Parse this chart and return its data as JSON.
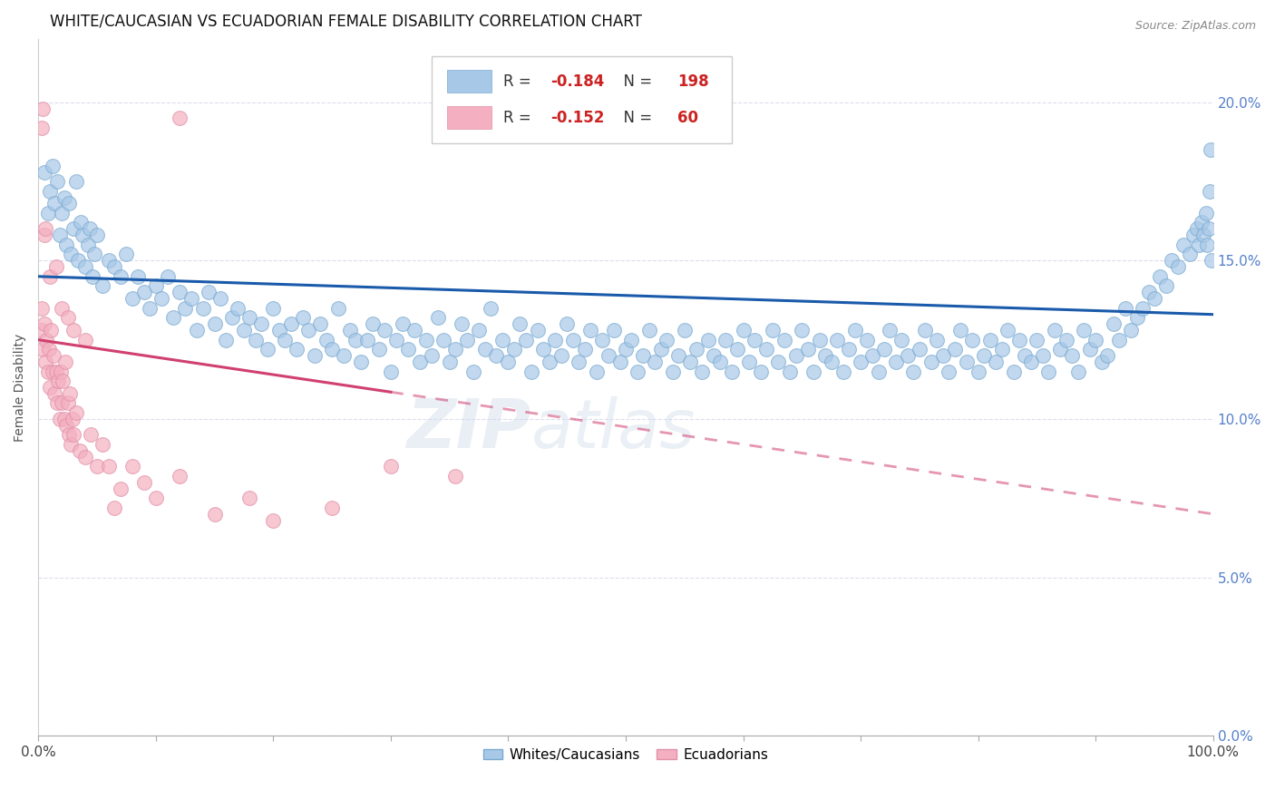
{
  "title": "WHITE/CAUCASIAN VS ECUADORIAN FEMALE DISABILITY CORRELATION CHART",
  "source": "Source: ZipAtlas.com",
  "ylabel": "Female Disability",
  "watermark": "ZIPatlas",
  "blue_R": -0.184,
  "blue_N": 198,
  "pink_R": -0.152,
  "pink_N": 60,
  "blue_color": "#a8c8e8",
  "pink_color": "#f4b0c0",
  "blue_line_color": "#1a5aaa",
  "pink_line_color": "#d04070",
  "blue_trend_y_start": 14.5,
  "blue_trend_y_end": 13.3,
  "pink_trend_y_start": 12.5,
  "pink_trend_y_end": 7.0,
  "pink_dashed_start_x": 30,
  "ylim": [
    0,
    22
  ],
  "xlim": [
    0,
    100
  ],
  "ytick_values": [
    0,
    5,
    10,
    15,
    20
  ],
  "xtick_values": [
    0,
    10,
    20,
    30,
    40,
    50,
    60,
    70,
    80,
    90,
    100
  ],
  "legend_blue_label": "Whites/Caucasians",
  "legend_pink_label": "Ecuadorians",
  "title_fontsize": 12,
  "axis_label_fontsize": 10,
  "tick_fontsize": 11,
  "right_tick_color": "#5580cc",
  "legend_R_color": "#cc2222",
  "legend_N_color": "#cc2222",
  "grid_color": "#ddddee",
  "blue_scatter": [
    [
      0.5,
      17.8
    ],
    [
      0.8,
      16.5
    ],
    [
      1.0,
      17.2
    ],
    [
      1.2,
      18.0
    ],
    [
      1.4,
      16.8
    ],
    [
      1.6,
      17.5
    ],
    [
      1.8,
      15.8
    ],
    [
      2.0,
      16.5
    ],
    [
      2.2,
      17.0
    ],
    [
      2.4,
      15.5
    ],
    [
      2.6,
      16.8
    ],
    [
      2.8,
      15.2
    ],
    [
      3.0,
      16.0
    ],
    [
      3.2,
      17.5
    ],
    [
      3.4,
      15.0
    ],
    [
      3.6,
      16.2
    ],
    [
      3.8,
      15.8
    ],
    [
      4.0,
      14.8
    ],
    [
      4.2,
      15.5
    ],
    [
      4.4,
      16.0
    ],
    [
      4.6,
      14.5
    ],
    [
      4.8,
      15.2
    ],
    [
      5.0,
      15.8
    ],
    [
      5.5,
      14.2
    ],
    [
      6.0,
      15.0
    ],
    [
      6.5,
      14.8
    ],
    [
      7.0,
      14.5
    ],
    [
      7.5,
      15.2
    ],
    [
      8.0,
      13.8
    ],
    [
      8.5,
      14.5
    ],
    [
      9.0,
      14.0
    ],
    [
      9.5,
      13.5
    ],
    [
      10.0,
      14.2
    ],
    [
      10.5,
      13.8
    ],
    [
      11.0,
      14.5
    ],
    [
      11.5,
      13.2
    ],
    [
      12.0,
      14.0
    ],
    [
      12.5,
      13.5
    ],
    [
      13.0,
      13.8
    ],
    [
      13.5,
      12.8
    ],
    [
      14.0,
      13.5
    ],
    [
      14.5,
      14.0
    ],
    [
      15.0,
      13.0
    ],
    [
      15.5,
      13.8
    ],
    [
      16.0,
      12.5
    ],
    [
      16.5,
      13.2
    ],
    [
      17.0,
      13.5
    ],
    [
      17.5,
      12.8
    ],
    [
      18.0,
      13.2
    ],
    [
      18.5,
      12.5
    ],
    [
      19.0,
      13.0
    ],
    [
      19.5,
      12.2
    ],
    [
      20.0,
      13.5
    ],
    [
      20.5,
      12.8
    ],
    [
      21.0,
      12.5
    ],
    [
      21.5,
      13.0
    ],
    [
      22.0,
      12.2
    ],
    [
      22.5,
      13.2
    ],
    [
      23.0,
      12.8
    ],
    [
      23.5,
      12.0
    ],
    [
      24.0,
      13.0
    ],
    [
      24.5,
      12.5
    ],
    [
      25.0,
      12.2
    ],
    [
      25.5,
      13.5
    ],
    [
      26.0,
      12.0
    ],
    [
      26.5,
      12.8
    ],
    [
      27.0,
      12.5
    ],
    [
      27.5,
      11.8
    ],
    [
      28.0,
      12.5
    ],
    [
      28.5,
      13.0
    ],
    [
      29.0,
      12.2
    ],
    [
      29.5,
      12.8
    ],
    [
      30.0,
      11.5
    ],
    [
      30.5,
      12.5
    ],
    [
      31.0,
      13.0
    ],
    [
      31.5,
      12.2
    ],
    [
      32.0,
      12.8
    ],
    [
      32.5,
      11.8
    ],
    [
      33.0,
      12.5
    ],
    [
      33.5,
      12.0
    ],
    [
      34.0,
      13.2
    ],
    [
      34.5,
      12.5
    ],
    [
      35.0,
      11.8
    ],
    [
      35.5,
      12.2
    ],
    [
      36.0,
      13.0
    ],
    [
      36.5,
      12.5
    ],
    [
      37.0,
      11.5
    ],
    [
      37.5,
      12.8
    ],
    [
      38.0,
      12.2
    ],
    [
      38.5,
      13.5
    ],
    [
      39.0,
      12.0
    ],
    [
      39.5,
      12.5
    ],
    [
      40.0,
      11.8
    ],
    [
      40.5,
      12.2
    ],
    [
      41.0,
      13.0
    ],
    [
      41.5,
      12.5
    ],
    [
      42.0,
      11.5
    ],
    [
      42.5,
      12.8
    ],
    [
      43.0,
      12.2
    ],
    [
      43.5,
      11.8
    ],
    [
      44.0,
      12.5
    ],
    [
      44.5,
      12.0
    ],
    [
      45.0,
      13.0
    ],
    [
      45.5,
      12.5
    ],
    [
      46.0,
      11.8
    ],
    [
      46.5,
      12.2
    ],
    [
      47.0,
      12.8
    ],
    [
      47.5,
      11.5
    ],
    [
      48.0,
      12.5
    ],
    [
      48.5,
      12.0
    ],
    [
      49.0,
      12.8
    ],
    [
      49.5,
      11.8
    ],
    [
      50.0,
      12.2
    ],
    [
      50.5,
      12.5
    ],
    [
      51.0,
      11.5
    ],
    [
      51.5,
      12.0
    ],
    [
      52.0,
      12.8
    ],
    [
      52.5,
      11.8
    ],
    [
      53.0,
      12.2
    ],
    [
      53.5,
      12.5
    ],
    [
      54.0,
      11.5
    ],
    [
      54.5,
      12.0
    ],
    [
      55.0,
      12.8
    ],
    [
      55.5,
      11.8
    ],
    [
      56.0,
      12.2
    ],
    [
      56.5,
      11.5
    ],
    [
      57.0,
      12.5
    ],
    [
      57.5,
      12.0
    ],
    [
      58.0,
      11.8
    ],
    [
      58.5,
      12.5
    ],
    [
      59.0,
      11.5
    ],
    [
      59.5,
      12.2
    ],
    [
      60.0,
      12.8
    ],
    [
      60.5,
      11.8
    ],
    [
      61.0,
      12.5
    ],
    [
      61.5,
      11.5
    ],
    [
      62.0,
      12.2
    ],
    [
      62.5,
      12.8
    ],
    [
      63.0,
      11.8
    ],
    [
      63.5,
      12.5
    ],
    [
      64.0,
      11.5
    ],
    [
      64.5,
      12.0
    ],
    [
      65.0,
      12.8
    ],
    [
      65.5,
      12.2
    ],
    [
      66.0,
      11.5
    ],
    [
      66.5,
      12.5
    ],
    [
      67.0,
      12.0
    ],
    [
      67.5,
      11.8
    ],
    [
      68.0,
      12.5
    ],
    [
      68.5,
      11.5
    ],
    [
      69.0,
      12.2
    ],
    [
      69.5,
      12.8
    ],
    [
      70.0,
      11.8
    ],
    [
      70.5,
      12.5
    ],
    [
      71.0,
      12.0
    ],
    [
      71.5,
      11.5
    ],
    [
      72.0,
      12.2
    ],
    [
      72.5,
      12.8
    ],
    [
      73.0,
      11.8
    ],
    [
      73.5,
      12.5
    ],
    [
      74.0,
      12.0
    ],
    [
      74.5,
      11.5
    ],
    [
      75.0,
      12.2
    ],
    [
      75.5,
      12.8
    ],
    [
      76.0,
      11.8
    ],
    [
      76.5,
      12.5
    ],
    [
      77.0,
      12.0
    ],
    [
      77.5,
      11.5
    ],
    [
      78.0,
      12.2
    ],
    [
      78.5,
      12.8
    ],
    [
      79.0,
      11.8
    ],
    [
      79.5,
      12.5
    ],
    [
      80.0,
      11.5
    ],
    [
      80.5,
      12.0
    ],
    [
      81.0,
      12.5
    ],
    [
      81.5,
      11.8
    ],
    [
      82.0,
      12.2
    ],
    [
      82.5,
      12.8
    ],
    [
      83.0,
      11.5
    ],
    [
      83.5,
      12.5
    ],
    [
      84.0,
      12.0
    ],
    [
      84.5,
      11.8
    ],
    [
      85.0,
      12.5
    ],
    [
      85.5,
      12.0
    ],
    [
      86.0,
      11.5
    ],
    [
      86.5,
      12.8
    ],
    [
      87.0,
      12.2
    ],
    [
      87.5,
      12.5
    ],
    [
      88.0,
      12.0
    ],
    [
      88.5,
      11.5
    ],
    [
      89.0,
      12.8
    ],
    [
      89.5,
      12.2
    ],
    [
      90.0,
      12.5
    ],
    [
      90.5,
      11.8
    ],
    [
      91.0,
      12.0
    ],
    [
      91.5,
      13.0
    ],
    [
      92.0,
      12.5
    ],
    [
      92.5,
      13.5
    ],
    [
      93.0,
      12.8
    ],
    [
      93.5,
      13.2
    ],
    [
      94.0,
      13.5
    ],
    [
      94.5,
      14.0
    ],
    [
      95.0,
      13.8
    ],
    [
      95.5,
      14.5
    ],
    [
      96.0,
      14.2
    ],
    [
      96.5,
      15.0
    ],
    [
      97.0,
      14.8
    ],
    [
      97.5,
      15.5
    ],
    [
      98.0,
      15.2
    ],
    [
      98.3,
      15.8
    ],
    [
      98.6,
      16.0
    ],
    [
      98.8,
      15.5
    ],
    [
      99.0,
      16.2
    ],
    [
      99.2,
      15.8
    ],
    [
      99.4,
      16.5
    ],
    [
      99.5,
      15.5
    ],
    [
      99.6,
      16.0
    ],
    [
      99.7,
      17.2
    ],
    [
      99.8,
      18.5
    ],
    [
      99.9,
      15.0
    ]
  ],
  "pink_scatter": [
    [
      0.2,
      12.8
    ],
    [
      0.3,
      13.5
    ],
    [
      0.4,
      12.2
    ],
    [
      0.5,
      13.0
    ],
    [
      0.6,
      11.8
    ],
    [
      0.7,
      12.5
    ],
    [
      0.8,
      11.5
    ],
    [
      0.9,
      12.2
    ],
    [
      1.0,
      11.0
    ],
    [
      1.1,
      12.8
    ],
    [
      1.2,
      11.5
    ],
    [
      1.3,
      12.0
    ],
    [
      1.4,
      10.8
    ],
    [
      1.5,
      11.5
    ],
    [
      1.6,
      10.5
    ],
    [
      1.7,
      11.2
    ],
    [
      1.8,
      10.0
    ],
    [
      1.9,
      11.5
    ],
    [
      2.0,
      10.5
    ],
    [
      2.1,
      11.2
    ],
    [
      2.2,
      10.0
    ],
    [
      2.3,
      11.8
    ],
    [
      2.4,
      9.8
    ],
    [
      2.5,
      10.5
    ],
    [
      2.6,
      9.5
    ],
    [
      2.7,
      10.8
    ],
    [
      2.8,
      9.2
    ],
    [
      2.9,
      10.0
    ],
    [
      3.0,
      9.5
    ],
    [
      3.2,
      10.2
    ],
    [
      3.5,
      9.0
    ],
    [
      4.0,
      8.8
    ],
    [
      4.5,
      9.5
    ],
    [
      5.0,
      8.5
    ],
    [
      5.5,
      9.2
    ],
    [
      6.0,
      8.5
    ],
    [
      7.0,
      7.8
    ],
    [
      8.0,
      8.5
    ],
    [
      10.0,
      7.5
    ],
    [
      12.0,
      8.2
    ],
    [
      15.0,
      7.0
    ],
    [
      18.0,
      7.5
    ],
    [
      20.0,
      6.8
    ],
    [
      25.0,
      7.2
    ],
    [
      30.0,
      8.5
    ],
    [
      0.3,
      19.2
    ],
    [
      0.4,
      19.8
    ],
    [
      0.5,
      15.8
    ],
    [
      0.6,
      16.0
    ],
    [
      1.0,
      14.5
    ],
    [
      1.5,
      14.8
    ],
    [
      2.0,
      13.5
    ],
    [
      2.5,
      13.2
    ],
    [
      3.0,
      12.8
    ],
    [
      4.0,
      12.5
    ],
    [
      12.0,
      19.5
    ],
    [
      6.5,
      7.2
    ],
    [
      9.0,
      8.0
    ],
    [
      35.5,
      8.2
    ]
  ]
}
